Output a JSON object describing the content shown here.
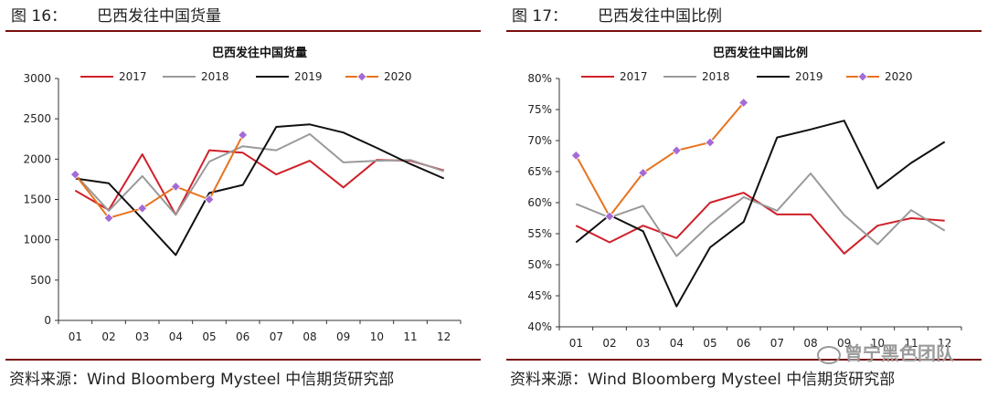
{
  "figures": [
    {
      "label": "图 16：",
      "title": "巴西发往中国货量",
      "source": "资料来源：Wind Bloomberg Mysteel 中信期货研究部",
      "chart_data": {
        "type": "line",
        "title": "巴西发往中国货量",
        "xlabel": "",
        "ylabel": "",
        "categories": [
          "01",
          "02",
          "03",
          "04",
          "05",
          "06",
          "07",
          "08",
          "09",
          "10",
          "11",
          "12"
        ],
        "ylim": [
          0,
          3000
        ],
        "yticks": [
          0,
          500,
          1000,
          1500,
          2000,
          2500,
          3000
        ],
        "ytick_labels": [
          "0",
          "500",
          "1000",
          "1500",
          "2000",
          "2500",
          "3000"
        ],
        "grid": false,
        "legend": "top",
        "series": [
          {
            "name": "2017",
            "color": "#d0202a",
            "marker": false,
            "values": [
              1610,
              1370,
              2060,
              1310,
              2110,
              2080,
              1810,
              1980,
              1650,
              1990,
              1980,
              1860
            ]
          },
          {
            "name": "2018",
            "color": "#9a9a9a",
            "marker": false,
            "values": [
              1810,
              1360,
              1790,
              1310,
              1970,
              2160,
              2110,
              2310,
              1960,
              1980,
              1990,
              1850
            ]
          },
          {
            "name": "2019",
            "color": "#111111",
            "marker": false,
            "values": [
              1760,
              1700,
              1260,
              810,
              1580,
              1680,
              2400,
              2430,
              2330,
              2140,
              1940,
              1760
            ]
          },
          {
            "name": "2020",
            "color": "#e8731d",
            "marker": true,
            "marker_color": "#a56bd4",
            "values": [
              1810,
              1270,
              1390,
              1660,
              1500,
              2300,
              null,
              null,
              null,
              null,
              null,
              null
            ]
          }
        ]
      }
    },
    {
      "label": "图 17：",
      "title": "巴西发往中国比例",
      "source": "资料来源：Wind Bloomberg Mysteel 中信期货研究部",
      "watermark": "曾宁黑色团队",
      "chart_data": {
        "type": "line",
        "title": "巴西发往中国比例",
        "xlabel": "",
        "ylabel": "",
        "categories": [
          "01",
          "02",
          "03",
          "04",
          "05",
          "06",
          "07",
          "08",
          "09",
          "10",
          "11",
          "12"
        ],
        "ylim": [
          40,
          80
        ],
        "yticks": [
          40,
          45,
          50,
          55,
          60,
          65,
          70,
          75,
          80
        ],
        "ytick_labels": [
          "40%",
          "45%",
          "50%",
          "55%",
          "60%",
          "65%",
          "70%",
          "75%",
          "80%"
        ],
        "grid": false,
        "legend": "top",
        "series": [
          {
            "name": "2017",
            "color": "#d0202a",
            "marker": false,
            "values": [
              56.3,
              53.6,
              56.3,
              54.3,
              60.0,
              61.6,
              58.1,
              58.1,
              51.8,
              56.3,
              57.5,
              57.1
            ]
          },
          {
            "name": "2018",
            "color": "#9a9a9a",
            "marker": false,
            "values": [
              59.8,
              57.6,
              59.5,
              51.4,
              56.5,
              60.9,
              58.7,
              64.7,
              58.0,
              53.3,
              58.8,
              55.5
            ]
          },
          {
            "name": "2019",
            "color": "#111111",
            "marker": false,
            "values": [
              53.6,
              58.0,
              55.4,
              43.3,
              52.8,
              56.9,
              70.5,
              71.8,
              73.2,
              62.3,
              66.4,
              69.8
            ]
          },
          {
            "name": "2020",
            "color": "#e8731d",
            "marker": true,
            "marker_color": "#a56bd4",
            "values": [
              67.6,
              57.8,
              64.8,
              68.4,
              69.7,
              76.1,
              null,
              null,
              null,
              null,
              null,
              null
            ]
          }
        ]
      }
    }
  ]
}
